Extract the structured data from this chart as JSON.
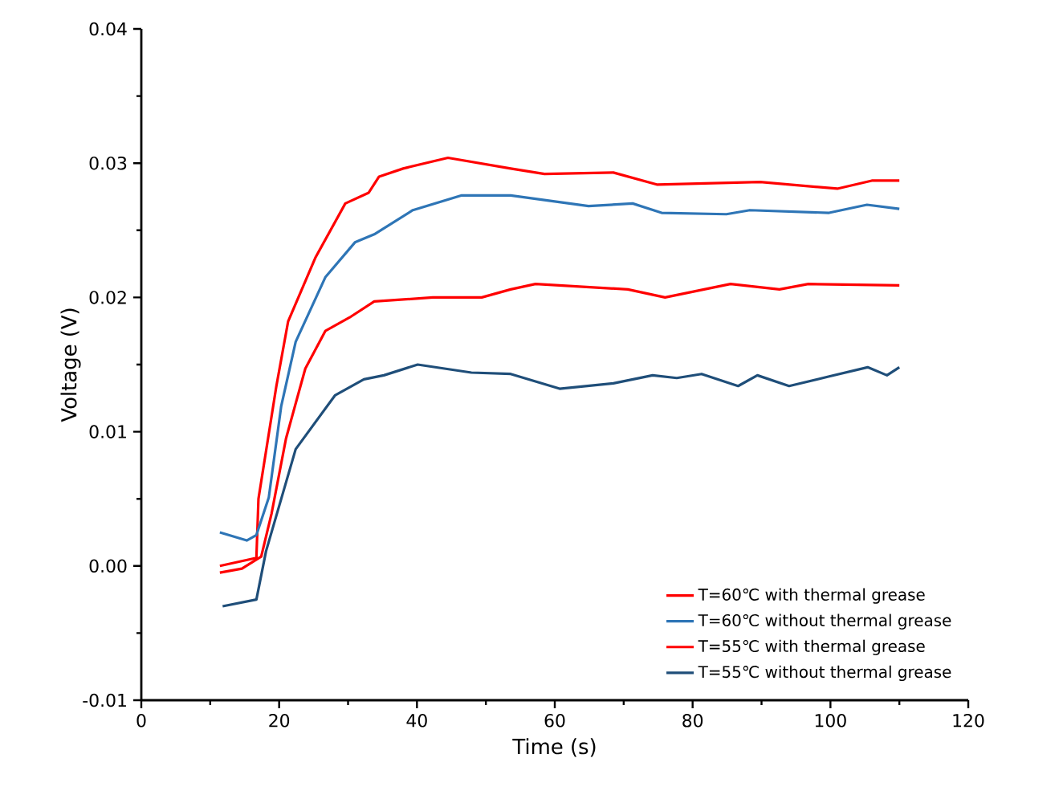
{
  "chart_data": {
    "type": "line",
    "xlabel": "Time (s)",
    "ylabel": "Voltage (V)",
    "xlim": [
      0,
      120
    ],
    "xticks": [
      0,
      20,
      40,
      60,
      80,
      100,
      120
    ],
    "ylim": [
      -0.01,
      0.04
    ],
    "yticks": [
      {
        "value": -0.01,
        "label": "-0.01"
      },
      {
        "value": 0,
        "label": "0.00"
      },
      {
        "value": 0.01,
        "label": "0.01"
      },
      {
        "value": 0.02,
        "label": "0.02"
      },
      {
        "value": 0.03,
        "label": "0.03"
      },
      {
        "value": 0.04,
        "label": "0.04"
      }
    ],
    "legend": "bottom right",
    "grid": false,
    "marker": "none",
    "line_style": "solid",
    "series": [
      {
        "name": "T=60℃ with thermal grease",
        "color": "#ff0000",
        "x": [
          11.4,
          16.7,
          17.0,
          19.6,
          21.3,
          25.3,
          29.6,
          33,
          34.5,
          38,
          44.5,
          53.6,
          58.5,
          68.5,
          74.9,
          89.8,
          101,
          106,
          110
        ],
        "values": [
          0.0,
          0.0006,
          0.005,
          0.0134,
          0.0182,
          0.023,
          0.027,
          0.0278,
          0.029,
          0.0296,
          0.0304,
          0.0296,
          0.0292,
          0.0293,
          0.0284,
          0.0286,
          0.0281,
          0.0287,
          0.0287
        ]
      },
      {
        "name": "T=60℃ without thermal grease",
        "color": "#2e75b6",
        "x": [
          11.4,
          15.3,
          16.7,
          18.5,
          20.3,
          22.4,
          26.7,
          31,
          33.8,
          39.4,
          46.5,
          53.6,
          64.9,
          71.3,
          75.5,
          84.9,
          88.3,
          99.8,
          105.3,
          110
        ],
        "values": [
          0.0025,
          0.0019,
          0.0023,
          0.0051,
          0.0119,
          0.0167,
          0.0215,
          0.0241,
          0.0247,
          0.0265,
          0.0276,
          0.0276,
          0.0268,
          0.027,
          0.0263,
          0.0262,
          0.0265,
          0.0263,
          0.0269,
          0.0266
        ]
      },
      {
        "name": "T=55℃ with thermal grease",
        "color": "#ff0000",
        "x": [
          11.4,
          14.6,
          17.4,
          18.9,
          21,
          23.8,
          26.7,
          30.2,
          33.8,
          42.3,
          49.4,
          53.6,
          57.2,
          70.6,
          76,
          85.5,
          92.6,
          96.8,
          110
        ],
        "values": [
          -0.0005,
          -0.0002,
          0.0007,
          0.0039,
          0.0095,
          0.0147,
          0.0175,
          0.0185,
          0.0197,
          0.02,
          0.02,
          0.0206,
          0.021,
          0.0206,
          0.02,
          0.021,
          0.0206,
          0.021,
          0.0209
        ]
      },
      {
        "name": "T=55℃ without thermal grease",
        "color": "#1f4e79",
        "x": [
          11.8,
          16.7,
          18.1,
          22.4,
          28.1,
          32.3,
          35.2,
          40.1,
          47.9,
          53.6,
          60.7,
          68.5,
          74.2,
          77.7,
          81.3,
          86.6,
          89.4,
          94,
          99.7,
          105.4,
          108.2,
          110
        ],
        "values": [
          -0.003,
          -0.0025,
          0.0011,
          0.0087,
          0.0127,
          0.0139,
          0.0142,
          0.015,
          0.0144,
          0.0143,
          0.0132,
          0.0136,
          0.0142,
          0.014,
          0.0143,
          0.0134,
          0.0142,
          0.0134,
          0.0141,
          0.0148,
          0.0142,
          0.0148
        ]
      }
    ]
  }
}
